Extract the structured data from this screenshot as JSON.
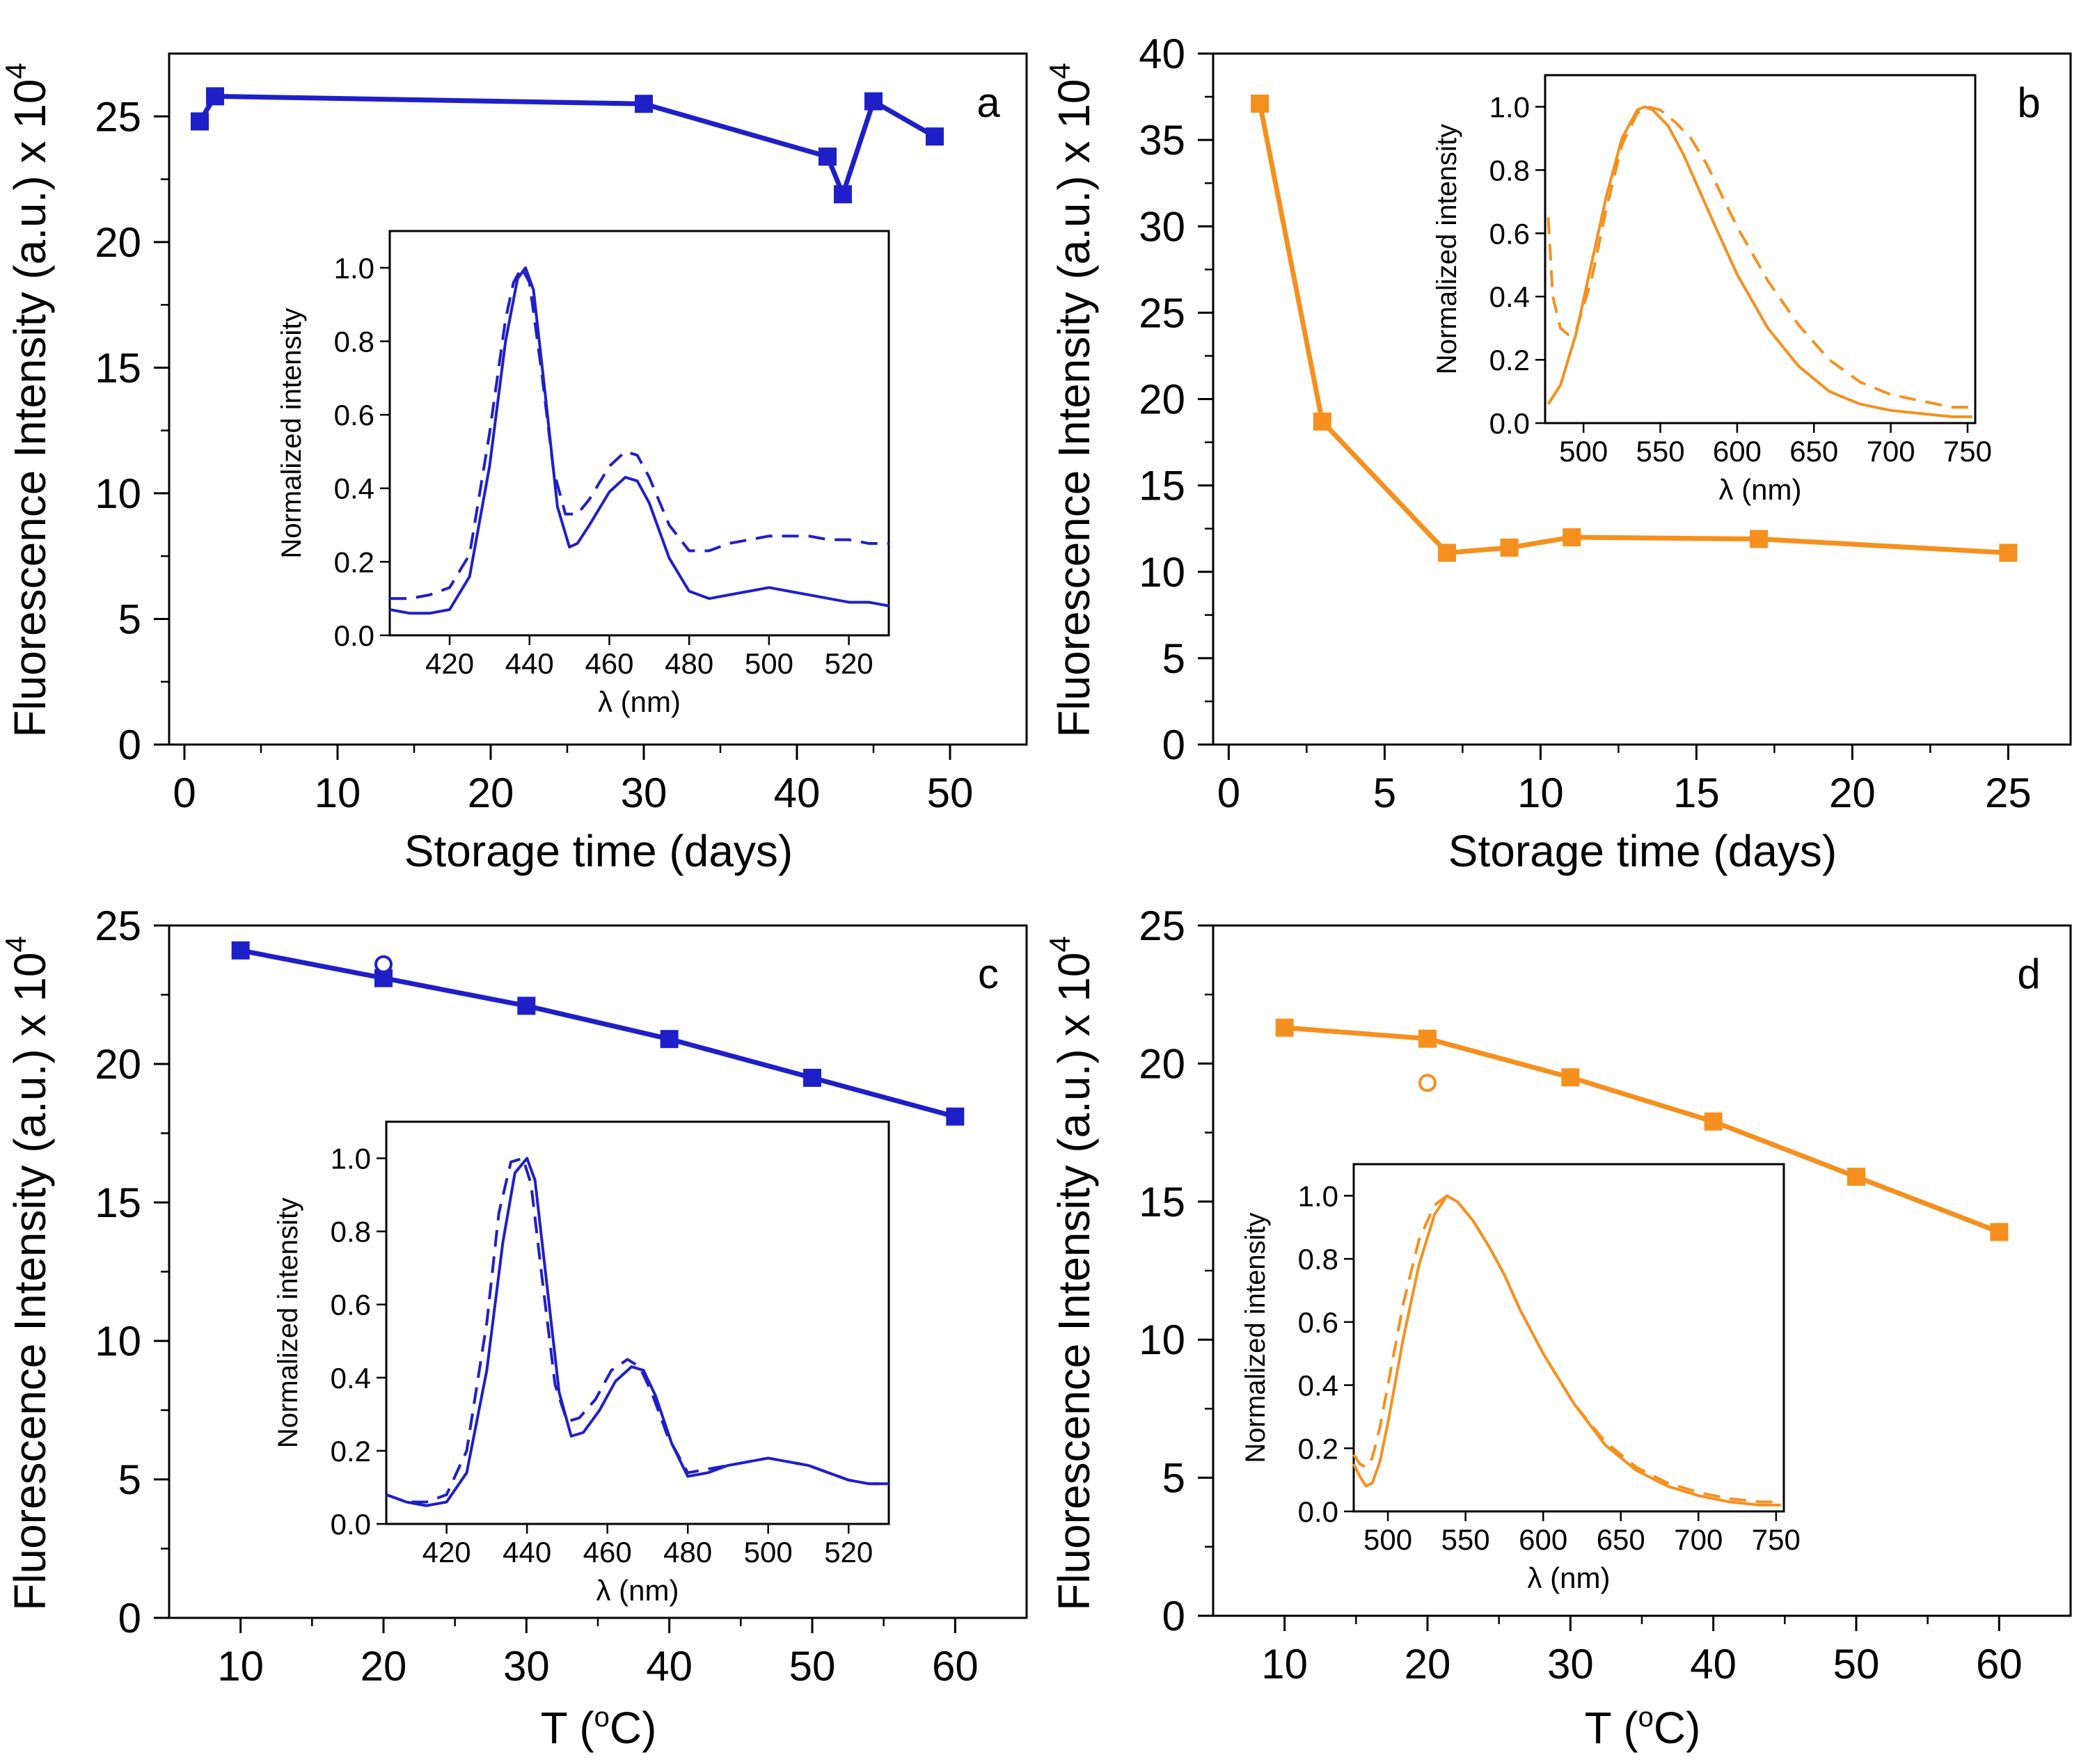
{
  "figure": {
    "colors": {
      "blue": "#1f1fc8",
      "orange": "#f5901e",
      "axis": "#000000"
    }
  },
  "chart_data": [
    {
      "id": "a",
      "type": "line",
      "panel_label": "a",
      "color": "#1f1fc8",
      "xlabel": "Storage time (days)",
      "ylabel": "Fluorescence Intensity (a.u.) x 10",
      "ylabel_sup": "4",
      "xlim": [
        -1,
        55
      ],
      "ylim": [
        0,
        27.5
      ],
      "xticks": [
        0,
        10,
        20,
        30,
        40,
        50
      ],
      "yticks": [
        0,
        5,
        10,
        15,
        20,
        25
      ],
      "xminor": [
        5,
        15,
        25,
        35,
        45
      ],
      "yminor": [
        2.5,
        7.5,
        12.5,
        17.5,
        22.5
      ],
      "series": [
        {
          "name": "intensity",
          "style": "solid-square",
          "x": [
            1,
            2,
            30,
            42,
            43,
            45,
            49
          ],
          "y": [
            24.8,
            25.8,
            25.5,
            23.4,
            21.9,
            25.6,
            24.2
          ]
        }
      ],
      "extra_points": [],
      "inset": {
        "xlabel": "λ (nm)",
        "ylabel": "Normalized intensity",
        "xlim": [
          405,
          530
        ],
        "ylim": [
          0,
          1.1
        ],
        "xticks": [
          420,
          440,
          460,
          480,
          500,
          520
        ],
        "yticks": [
          0.0,
          0.2,
          0.4,
          0.6,
          0.8,
          1.0
        ],
        "ytick_labels": [
          "0.0",
          "0.2",
          "0.4",
          "0.6",
          "0.8",
          "1.0"
        ],
        "curves": [
          {
            "name": "solid",
            "dash": "",
            "x": [
              405,
              410,
              415,
              420,
              425,
              430,
              434,
              437,
              439,
              441,
              444,
              447,
              450,
              452,
              455,
              460,
              464,
              467,
              470,
              475,
              480,
              485,
              490,
              495,
              500,
              505,
              510,
              515,
              520,
              525,
              530
            ],
            "y": [
              0.07,
              0.06,
              0.06,
              0.07,
              0.16,
              0.46,
              0.8,
              0.97,
              1.0,
              0.94,
              0.65,
              0.35,
              0.24,
              0.25,
              0.3,
              0.39,
              0.43,
              0.42,
              0.36,
              0.21,
              0.12,
              0.1,
              0.11,
              0.12,
              0.13,
              0.12,
              0.11,
              0.1,
              0.09,
              0.09,
              0.08
            ]
          },
          {
            "name": "dashed",
            "dash": "24,14",
            "x": [
              405,
              410,
              415,
              420,
              425,
              430,
              434,
              436,
              438,
              440,
              443,
              446,
              449,
              452,
              455,
              460,
              464,
              467,
              470,
              475,
              480,
              485,
              490,
              495,
              500,
              505,
              510,
              515,
              520,
              525,
              530
            ],
            "y": [
              0.1,
              0.1,
              0.11,
              0.13,
              0.22,
              0.55,
              0.86,
              0.96,
              1.0,
              0.96,
              0.72,
              0.45,
              0.33,
              0.33,
              0.37,
              0.46,
              0.5,
              0.49,
              0.43,
              0.3,
              0.23,
              0.23,
              0.25,
              0.26,
              0.27,
              0.27,
              0.27,
              0.26,
              0.26,
              0.25,
              0.25
            ]
          }
        ]
      }
    },
    {
      "id": "b",
      "type": "line",
      "panel_label": "b",
      "color": "#f5901e",
      "xlabel": "Storage time (days)",
      "ylabel": "Fluorescence Intensity (a.u.) x 10",
      "ylabel_sup": "4",
      "xlim": [
        -0.5,
        27
      ],
      "ylim": [
        0,
        40
      ],
      "xticks": [
        0,
        5,
        10,
        15,
        20,
        25
      ],
      "yticks": [
        0,
        5,
        10,
        15,
        20,
        25,
        30,
        35,
        40
      ],
      "xminor": [
        2.5,
        7.5,
        12.5,
        17.5,
        22.5
      ],
      "yminor": [
        2.5,
        7.5,
        12.5,
        17.5,
        22.5,
        27.5,
        32.5,
        37.5
      ],
      "series": [
        {
          "name": "intensity",
          "style": "solid-square",
          "x": [
            1,
            3,
            7,
            9,
            11,
            17,
            25
          ],
          "y": [
            37.1,
            18.7,
            11.1,
            11.4,
            12.0,
            11.9,
            11.1
          ]
        }
      ],
      "extra_points": [],
      "inset": {
        "xlabel": "λ (nm)",
        "ylabel": "Normalized intensity",
        "xlim": [
          475,
          755
        ],
        "ylim": [
          0,
          1.1
        ],
        "xticks": [
          500,
          550,
          600,
          650,
          700,
          750
        ],
        "yticks": [
          0.0,
          0.2,
          0.4,
          0.6,
          0.8,
          1.0
        ],
        "ytick_labels": [
          "0.0",
          "0.2",
          "0.4",
          "0.6",
          "0.8",
          "1.0"
        ],
        "curves": [
          {
            "name": "solid",
            "dash": "",
            "x": [
              477,
              485,
              495,
              505,
              515,
              525,
              535,
              540,
              545,
              555,
              565,
              575,
              585,
              600,
              620,
              640,
              660,
              680,
              700,
              720,
              740,
              753
            ],
            "y": [
              0.06,
              0.12,
              0.28,
              0.5,
              0.72,
              0.9,
              0.99,
              1.0,
              0.99,
              0.94,
              0.85,
              0.74,
              0.63,
              0.47,
              0.3,
              0.18,
              0.1,
              0.06,
              0.04,
              0.03,
              0.02,
              0.02
            ]
          },
          {
            "name": "dashed",
            "dash": "24,14",
            "x": [
              477,
              480,
              485,
              490,
              495,
              505,
              515,
              525,
              535,
              542,
              550,
              560,
              570,
              580,
              590,
              600,
              620,
              640,
              660,
              680,
              700,
              720,
              740,
              753
            ],
            "y": [
              0.65,
              0.4,
              0.3,
              0.28,
              0.29,
              0.45,
              0.68,
              0.88,
              0.98,
              1.0,
              0.99,
              0.95,
              0.9,
              0.82,
              0.72,
              0.62,
              0.45,
              0.31,
              0.2,
              0.13,
              0.09,
              0.07,
              0.05,
              0.05
            ]
          }
        ]
      }
    },
    {
      "id": "c",
      "type": "line",
      "panel_label": "c",
      "color": "#1f1fc8",
      "xlabel": "T (",
      "xlabel_sup": "o",
      "xlabel_tail": "C)",
      "ylabel": "Fluorescence Intensity (a.u.) x 10",
      "ylabel_sup": "4",
      "xlim": [
        5,
        65
      ],
      "ylim": [
        0,
        25
      ],
      "xticks": [
        10,
        20,
        30,
        40,
        50,
        60
      ],
      "yticks": [
        0,
        5,
        10,
        15,
        20,
        25
      ],
      "xminor": [
        15,
        25,
        35,
        45,
        55
      ],
      "yminor": [
        2.5,
        7.5,
        12.5,
        17.5,
        22.5
      ],
      "series": [
        {
          "name": "intensity",
          "style": "solid-square",
          "x": [
            10,
            20,
            30,
            40,
            50,
            60
          ],
          "y": [
            24.1,
            23.1,
            22.1,
            20.9,
            19.5,
            18.1
          ]
        }
      ],
      "extra_points": [
        {
          "x": 20,
          "y": 23.6,
          "style": "open-circle"
        }
      ],
      "inset": {
        "xlabel": "λ (nm)",
        "ylabel": "Normalized intensity",
        "xlim": [
          405,
          530
        ],
        "ylim": [
          0,
          1.1
        ],
        "xticks": [
          420,
          440,
          460,
          480,
          500,
          520
        ],
        "yticks": [
          0.0,
          0.2,
          0.4,
          0.6,
          0.8,
          1.0
        ],
        "ytick_labels": [
          "0.0",
          "0.2",
          "0.4",
          "0.6",
          "0.8",
          "1.0"
        ],
        "curves": [
          {
            "name": "solid",
            "dash": "",
            "x": [
              405,
              410,
              415,
              420,
              425,
              430,
              434,
              437,
              440,
              442,
              445,
              448,
              451,
              454,
              458,
              462,
              466,
              469,
              472,
              476,
              480,
              485,
              490,
              495,
              500,
              505,
              510,
              515,
              520,
              525,
              530
            ],
            "y": [
              0.08,
              0.06,
              0.05,
              0.06,
              0.14,
              0.42,
              0.77,
              0.96,
              1.0,
              0.94,
              0.65,
              0.36,
              0.24,
              0.25,
              0.31,
              0.39,
              0.43,
              0.42,
              0.35,
              0.22,
              0.13,
              0.14,
              0.16,
              0.17,
              0.18,
              0.17,
              0.16,
              0.14,
              0.12,
              0.11,
              0.11
            ]
          },
          {
            "name": "dashed",
            "dash": "24,14",
            "x": [
              405,
              410,
              415,
              420,
              425,
              430,
              433,
              436,
              439,
              441,
              444,
              447,
              450,
              453,
              457,
              461,
              465,
              468,
              471,
              475,
              480,
              485,
              490,
              495,
              500,
              505,
              510,
              515,
              520,
              525,
              530
            ],
            "y": [
              0.08,
              0.06,
              0.06,
              0.08,
              0.2,
              0.55,
              0.85,
              0.99,
              1.0,
              0.93,
              0.65,
              0.38,
              0.28,
              0.29,
              0.34,
              0.42,
              0.45,
              0.43,
              0.36,
              0.24,
              0.14,
              0.15,
              0.16,
              0.17,
              0.18,
              0.17,
              0.16,
              0.14,
              0.12,
              0.11,
              0.11
            ]
          }
        ]
      }
    },
    {
      "id": "d",
      "type": "line",
      "panel_label": "d",
      "color": "#f5901e",
      "xlabel": "T (",
      "xlabel_sup": "o",
      "xlabel_tail": "C)",
      "ylabel": "Fluorescence Intensity (a.u.) x 10",
      "ylabel_sup": "4",
      "xlim": [
        5,
        65
      ],
      "ylim": [
        0,
        25
      ],
      "xticks": [
        10,
        20,
        30,
        40,
        50,
        60
      ],
      "yticks": [
        0,
        5,
        10,
        15,
        20,
        25
      ],
      "xminor": [
        15,
        25,
        35,
        45,
        55
      ],
      "yminor": [
        2.5,
        7.5,
        12.5,
        17.5,
        22.5
      ],
      "series": [
        {
          "name": "intensity",
          "style": "solid-square",
          "x": [
            10,
            20,
            30,
            40,
            50,
            60
          ],
          "y": [
            21.3,
            20.9,
            19.5,
            17.9,
            15.9,
            13.9
          ]
        }
      ],
      "extra_points": [
        {
          "x": 20,
          "y": 19.3,
          "style": "open-circle"
        }
      ],
      "inset": {
        "xlabel": "λ (nm)",
        "ylabel": "Normalized intensity",
        "xlim": [
          478,
          755
        ],
        "ylim": [
          0,
          1.1
        ],
        "xticks": [
          500,
          550,
          600,
          650,
          700,
          750
        ],
        "yticks": [
          0.0,
          0.2,
          0.4,
          0.6,
          0.8,
          1.0
        ],
        "ytick_labels": [
          "0.0",
          "0.2",
          "0.4",
          "0.6",
          "0.8",
          "1.0"
        ],
        "curves": [
          {
            "name": "solid",
            "dash": "",
            "x": [
              478,
              482,
              486,
              490,
              495,
              500,
              510,
              520,
              530,
              538,
              545,
              555,
              565,
              575,
              585,
              600,
              620,
              640,
              660,
              680,
              700,
              720,
              740,
              753
            ],
            "y": [
              0.15,
              0.11,
              0.08,
              0.09,
              0.16,
              0.28,
              0.55,
              0.78,
              0.94,
              1.0,
              0.98,
              0.92,
              0.84,
              0.75,
              0.64,
              0.5,
              0.34,
              0.21,
              0.13,
              0.08,
              0.05,
              0.03,
              0.02,
              0.02
            ]
          },
          {
            "name": "dashed",
            "dash": "24,14",
            "x": [
              478,
              482,
              486,
              490,
              495,
              500,
              510,
              520,
              530,
              538,
              545,
              555,
              565,
              575,
              585,
              600,
              620,
              640,
              660,
              680,
              700,
              720,
              740,
              753
            ],
            "y": [
              0.18,
              0.15,
              0.14,
              0.17,
              0.27,
              0.4,
              0.66,
              0.86,
              0.97,
              1.0,
              0.98,
              0.92,
              0.84,
              0.75,
              0.64,
              0.5,
              0.34,
              0.22,
              0.14,
              0.09,
              0.06,
              0.04,
              0.03,
              0.03
            ]
          }
        ]
      }
    }
  ]
}
